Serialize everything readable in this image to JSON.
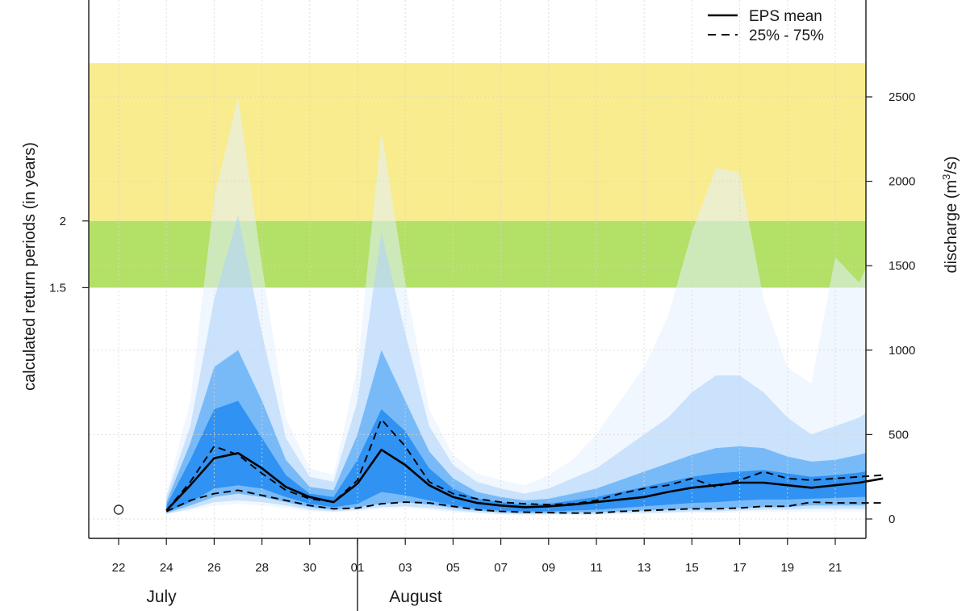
{
  "chart_data": {
    "type": "area",
    "title": "",
    "xlabel": "",
    "ylabel_left": "calculated return periods (in years)",
    "ylabel_right_main": "discharge (m",
    "ylabel_right_sup": "3",
    "ylabel_right_tail": "/s)",
    "x_tick_labels": [
      "22",
      "24",
      "26",
      "28",
      "30",
      "01",
      "03",
      "05",
      "07",
      "09",
      "11",
      "13",
      "15",
      "17",
      "19",
      "21"
    ],
    "month_labels": [
      "July",
      "August"
    ],
    "left_ticks": [
      {
        "label": "2",
        "discharge": 1765
      },
      {
        "label": "1.5",
        "discharge": 1370
      }
    ],
    "right_ticks": [
      0,
      500,
      1000,
      1500,
      2000,
      2500
    ],
    "ylim": [
      -90,
      2700
    ],
    "x_range_days": [
      -1.5,
      31.5
    ],
    "bands": [
      {
        "name": "2-year threshold",
        "from": 1765,
        "to": 2700,
        "color": "#f8ec8e"
      },
      {
        "name": "1.5-year threshold",
        "from": 1370,
        "to": 1765,
        "color": "#b3e067"
      }
    ],
    "x_days": [
      1,
      2,
      3,
      4,
      5,
      6,
      7,
      8,
      9,
      10,
      11,
      12,
      13,
      14,
      15,
      16,
      17,
      18,
      19,
      20,
      21,
      22,
      23,
      24,
      25,
      26,
      27,
      28,
      29,
      30,
      31
    ],
    "series": [
      {
        "name": "EPS mean",
        "style": "solid",
        "values": [
          50,
          200,
          360,
          390,
          300,
          190,
          130,
          100,
          210,
          410,
          320,
          200,
          130,
          95,
          80,
          70,
          75,
          85,
          100,
          115,
          130,
          160,
          185,
          200,
          215,
          215,
          200,
          185,
          200,
          215,
          240
        ]
      },
      {
        "name": "25% - 75%",
        "style": "dashed",
        "values": [
          50,
          220,
          430,
          380,
          270,
          170,
          120,
          100,
          230,
          590,
          430,
          220,
          150,
          120,
          100,
          90,
          85,
          90,
          110,
          150,
          180,
          200,
          240,
          190,
          230,
          280,
          240,
          230,
          240,
          250,
          260
        ]
      },
      {
        "name": "25% - 75%",
        "style": "dashed",
        "values": [
          45,
          110,
          150,
          170,
          140,
          110,
          80,
          60,
          65,
          90,
          100,
          95,
          75,
          55,
          45,
          40,
          38,
          35,
          35,
          45,
          50,
          55,
          60,
          60,
          65,
          75,
          75,
          100,
          95,
          95,
          95
        ]
      }
    ],
    "spread_bands_upper": [
      [
        80,
        350,
        650,
        700,
        480,
        260,
        150,
        130,
        350,
        650,
        520,
        300,
        180,
        120,
        100,
        85,
        90,
        110,
        130,
        160,
        190,
        220,
        250,
        270,
        280,
        290,
        270,
        250,
        260,
        275,
        300
      ],
      [
        100,
        450,
        900,
        1000,
        700,
        350,
        190,
        170,
        500,
        1000,
        700,
        400,
        240,
        160,
        130,
        110,
        120,
        150,
        180,
        230,
        280,
        330,
        380,
        420,
        430,
        420,
        370,
        340,
        350,
        380,
        420
      ],
      [
        130,
        550,
        1300,
        1800,
        1100,
        480,
        250,
        220,
        700,
        1700,
        1100,
        550,
        320,
        220,
        180,
        150,
        180,
        240,
        300,
        400,
        500,
        600,
        750,
        850,
        850,
        750,
        600,
        500,
        550,
        600,
        700
      ],
      [
        150,
        700,
        1900,
        2500,
        1500,
        600,
        300,
        260,
        900,
        2300,
        1400,
        650,
        380,
        270,
        230,
        200,
        260,
        350,
        500,
        700,
        900,
        1200,
        1700,
        2080,
        2050,
        1300,
        900,
        800,
        1550,
        1400,
        1700
      ]
    ],
    "spread_bands_lower": [
      [
        40,
        100,
        180,
        200,
        180,
        130,
        90,
        70,
        90,
        160,
        140,
        110,
        80,
        60,
        50,
        45,
        45,
        50,
        55,
        65,
        75,
        85,
        95,
        100,
        110,
        115,
        115,
        120,
        125,
        130,
        130
      ],
      [
        35,
        80,
        130,
        150,
        130,
        100,
        70,
        55,
        70,
        90,
        100,
        85,
        65,
        50,
        40,
        35,
        35,
        40,
        40,
        45,
        50,
        55,
        60,
        60,
        65,
        70,
        70,
        80,
        80,
        80,
        80
      ],
      [
        30,
        60,
        100,
        110,
        100,
        80,
        55,
        45,
        55,
        70,
        75,
        65,
        50,
        40,
        30,
        28,
        28,
        30,
        30,
        35,
        38,
        40,
        45,
        45,
        50,
        55,
        55,
        60,
        60,
        60,
        60
      ],
      [
        30,
        50,
        80,
        90,
        80,
        65,
        45,
        40,
        45,
        60,
        60,
        55,
        40,
        32,
        25,
        22,
        22,
        24,
        24,
        28,
        30,
        32,
        35,
        35,
        40,
        42,
        42,
        45,
        45,
        45,
        45
      ]
    ],
    "band_colors": [
      "#1e88f0",
      "#63b0f6",
      "#b0d4fa",
      "#e3f0fd"
    ],
    "observed_point": {
      "day": -1,
      "value": 55
    },
    "grid": true,
    "legend_position": "top-right",
    "colors": {
      "mean": "#000000",
      "quartile": "#000000",
      "axis": "#1a1a1a",
      "grid": "#dddddd"
    }
  }
}
